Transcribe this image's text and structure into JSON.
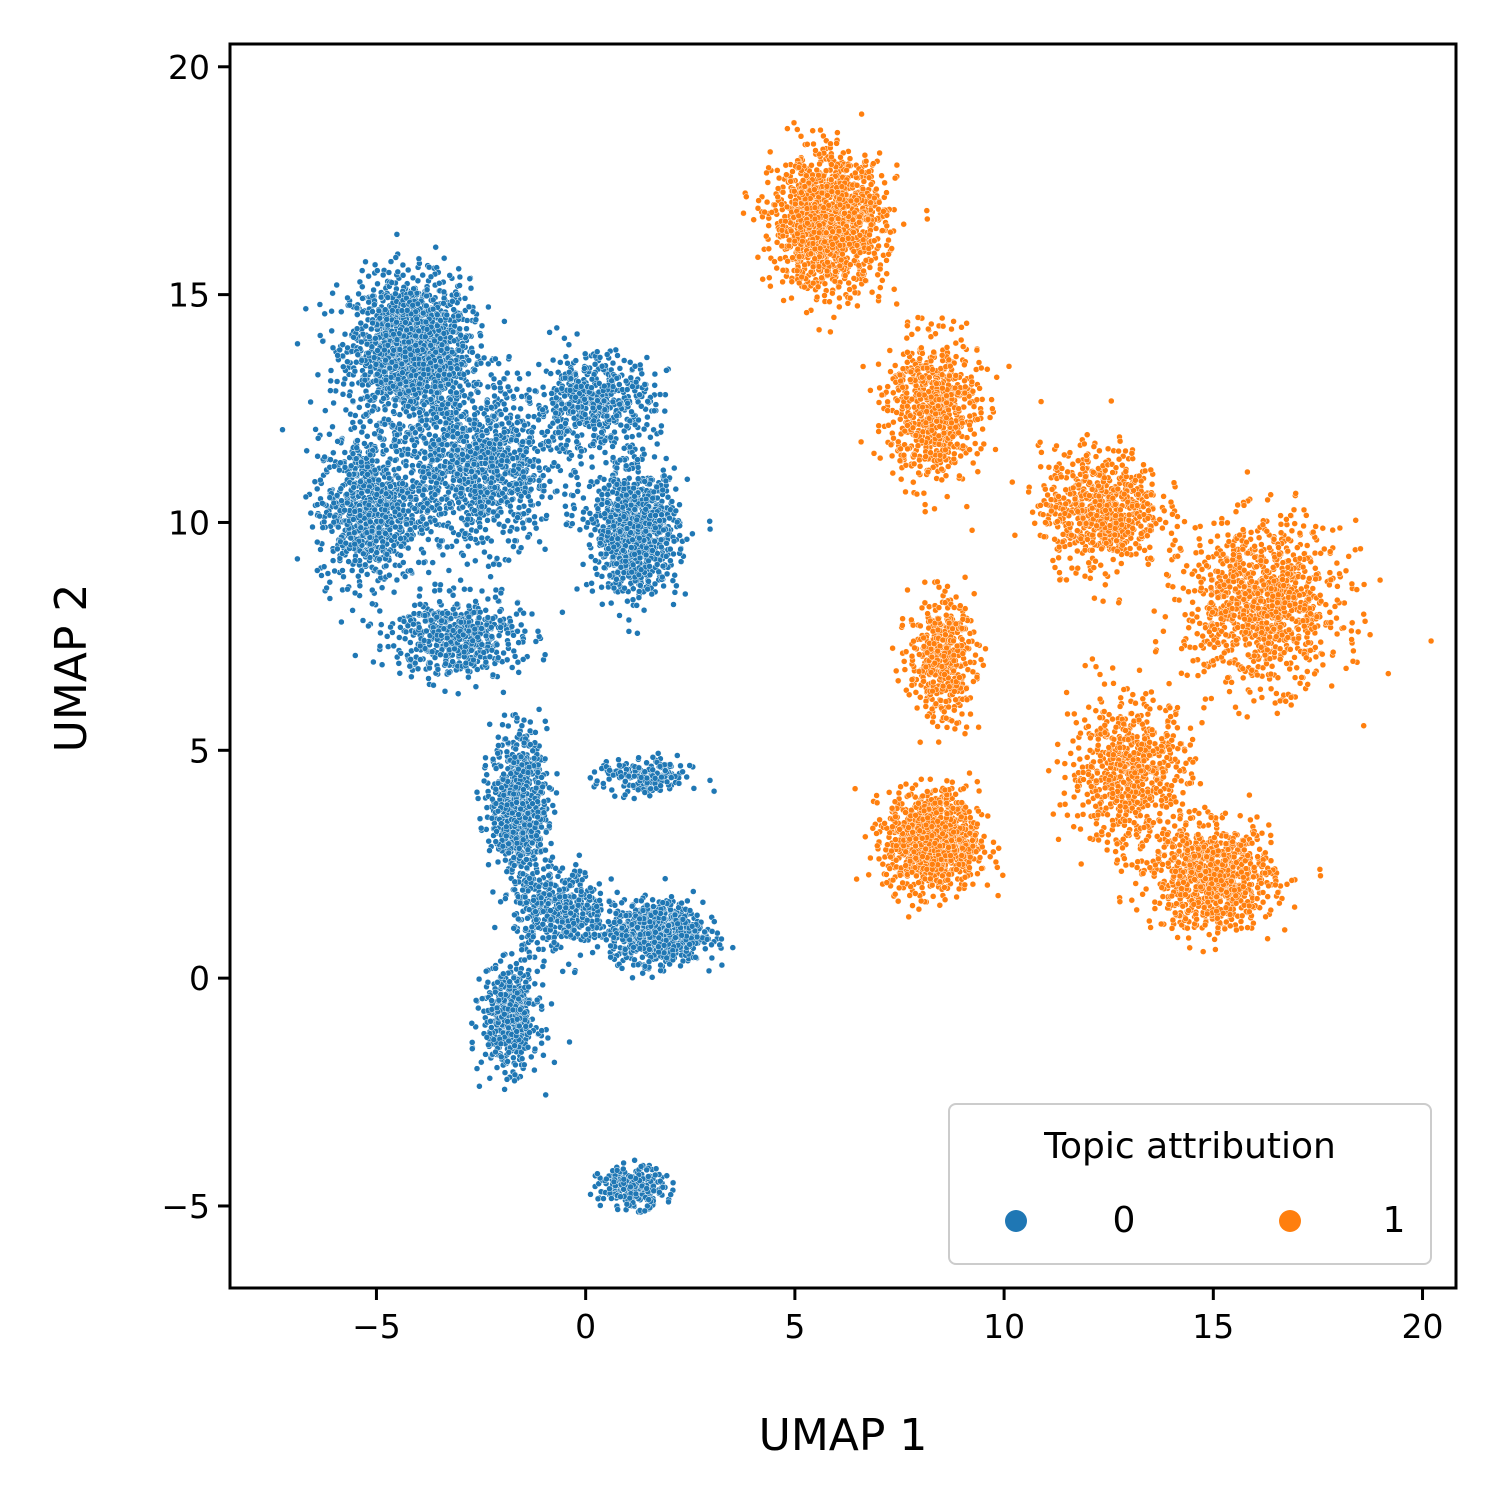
{
  "chart_data": {
    "type": "scatter",
    "xlabel": "UMAP 1",
    "ylabel": "UMAP 2",
    "xlim": [
      -8.5,
      20.8
    ],
    "ylim": [
      -6.8,
      20.5
    ],
    "x_ticks": [
      -5,
      0,
      5,
      10,
      15,
      20
    ],
    "x_tick_labels": [
      "−5",
      "0",
      "5",
      "10",
      "15",
      "20"
    ],
    "y_ticks": [
      -5,
      0,
      5,
      10,
      15,
      20
    ],
    "y_tick_labels": [
      "−5",
      "0",
      "5",
      "10",
      "15",
      "20"
    ],
    "grid": false,
    "legend": {
      "title": "Topic attribution",
      "placement": "lower-right",
      "entries": [
        "0",
        "1"
      ]
    },
    "series": [
      {
        "name": "0",
        "color": "#1f77b4",
        "point_count_estimate": 9000,
        "clusters": [
          {
            "center": [
              -4.2,
              13.8
            ],
            "spread": [
              1.3,
              1.4
            ],
            "weight": 0.19
          },
          {
            "center": [
              -5.2,
              10.3
            ],
            "spread": [
              1.1,
              1.5
            ],
            "weight": 0.09
          },
          {
            "center": [
              -2.6,
              11.2
            ],
            "spread": [
              1.7,
              1.6
            ],
            "weight": 0.13
          },
          {
            "center": [
              0.2,
              12.6
            ],
            "spread": [
              1.3,
              1.0
            ],
            "weight": 0.06
          },
          {
            "center": [
              1.2,
              9.8
            ],
            "spread": [
              0.9,
              1.2
            ],
            "weight": 0.11
          },
          {
            "center": [
              -3.1,
              7.5
            ],
            "spread": [
              1.4,
              0.8
            ],
            "weight": 0.06
          },
          {
            "center": [
              -1.6,
              3.8
            ],
            "spread": [
              0.6,
              1.4
            ],
            "weight": 0.09
          },
          {
            "center": [
              1.4,
              4.4
            ],
            "spread": [
              1.0,
              0.4
            ],
            "weight": 0.02
          },
          {
            "center": [
              1.7,
              1.0
            ],
            "spread": [
              1.0,
              0.6
            ],
            "weight": 0.1
          },
          {
            "center": [
              -0.6,
              1.5
            ],
            "spread": [
              1.0,
              0.8
            ],
            "weight": 0.05
          },
          {
            "center": [
              -1.8,
              -0.9
            ],
            "spread": [
              0.6,
              1.0
            ],
            "weight": 0.06
          },
          {
            "center": [
              1.1,
              -4.6
            ],
            "spread": [
              0.7,
              0.4
            ],
            "weight": 0.03
          }
        ]
      },
      {
        "name": "1",
        "color": "#ff7f0e",
        "point_count_estimate": 7000,
        "clusters": [
          {
            "center": [
              5.8,
              16.6
            ],
            "spread": [
              1.2,
              1.3
            ],
            "weight": 0.2
          },
          {
            "center": [
              8.3,
              12.5
            ],
            "spread": [
              1.0,
              1.4
            ],
            "weight": 0.1
          },
          {
            "center": [
              8.5,
              7.0
            ],
            "spread": [
              0.7,
              1.2
            ],
            "weight": 0.07
          },
          {
            "center": [
              8.3,
              3.0
            ],
            "spread": [
              1.0,
              1.0
            ],
            "weight": 0.15
          },
          {
            "center": [
              12.3,
              10.3
            ],
            "spread": [
              1.3,
              1.2
            ],
            "weight": 0.1
          },
          {
            "center": [
              16.2,
              8.2
            ],
            "spread": [
              1.7,
              1.6
            ],
            "weight": 0.15
          },
          {
            "center": [
              13.0,
              4.5
            ],
            "spread": [
              1.3,
              1.5
            ],
            "weight": 0.1
          },
          {
            "center": [
              15.0,
              2.2
            ],
            "spread": [
              1.3,
              1.0
            ],
            "weight": 0.13
          }
        ]
      }
    ]
  }
}
